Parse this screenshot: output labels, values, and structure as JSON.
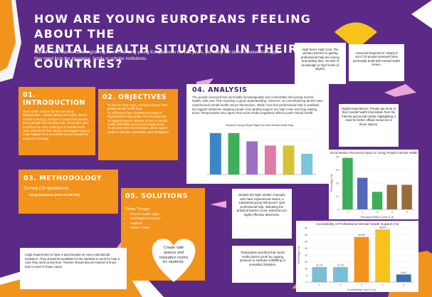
{
  "header": {
    "title_line1": "HOW ARE YOUNG EUROPEANS FEELING ABOUT THE",
    "title_line2": "MENTAL HEALTH SITUATION IN THEIR COUNTRIES?",
    "intro": "Mental health has become a growing concern among young Europeans in the last years, yet many still do not receive the support they need from the insurance, family or scholar institutions."
  },
  "introduction": {
    "heading": "01. INTRODUCTION",
    "text": "Some of the reasons for this are social stigmatization, cultural taboos and myths, limited access to therapy, and lack of awareness prevent young people from seeking help. The project aims to explore the main challenges to mental health care, understand their impact, and suggest ways to make support more accessible and acceptable for everyone in Europe."
  },
  "objectives": {
    "heading": "02. OBJECTIVES",
    "items": [
      "To find out what stops young Europeans from getting mental health help.",
      "To understand how depression/anxiety or stigmatization stop people from seeking help.",
      "To suggest ways to improve access to mental health (affordable prices and waiting times)",
      "To promote open conversations about mental health in schools, universities, and workplaces."
    ]
  },
  "methodology": {
    "heading": "03. METHODOLOGY",
    "survey": "Survey (10 questions)",
    "item": "Young Europeans (teens to late 20s)"
  },
  "analysis": {
    "heading": "04. ANALYSIS",
    "text": "The people surveyed feel personally knowledgeable and comfortable discussing mental health, with over 75% reporting a good understanding. However, an overwhelming 88.9% have experienced mental health issues themselves. While most feel professional help is available, the biggest obstacles stopping people from getting support are high costs and long waiting times. Respondents also agree that social media negatively affects youth mental health."
  },
  "solutions": {
    "heading": "05. SOLUTIONS",
    "label": "Online Therapy :",
    "items": [
      "Mental health apps",
      "Text-based services",
      "Hotlines",
      "Online Chats"
    ]
  },
  "notes": {
    "high_need": "High Need, High Cost: The primary barriers to getting professional help are money and waiting lists, not lack of knowledge or high levels of stigma.",
    "universal": "Universal Experience: Nearly 9 out of 10 people surveyed have personally dealt with mental health issues.",
    "digital": "Digital Dependence: People get most of their mental health information from the internet and social media, highlighting a need for better official resources in those spaces.",
    "despite": "Despite the high number of people who have experienced issues, a substantial group still doesn't seek professional help, indicating the practical barriers (cost, wait time) are highly effective deterrents.",
    "participants": "Participants specified that social media harms youth by causing pressure to replicate unfulfilling or unrealistic lifestyles.",
    "safe_spaces": "Create safe spaces and relaxation rooms for students.",
    "legal": "Legal requirement to have a psychologist on every educational institution. They should be available for the students to seek for help in case they need at any time. Teacher should also be trained to know how to react in those cases."
  },
  "colors": {
    "background": "#5a2a86",
    "orange": "#f2931b",
    "yellow": "#f7c21b",
    "white": "#ffffff"
  },
  "chart_data": [
    {
      "type": "bar",
      "title": "Reasons Young People Might Not Seek Mental Health Help",
      "categories": [
        "",
        "",
        "",
        "",
        "",
        ""
      ],
      "values": [
        10,
        10,
        8,
        7,
        7,
        5
      ],
      "colors": [
        "#3a87c8",
        "#3fae5a",
        "#9b6fc3",
        "#e07aa8",
        "#d6c234",
        "#7cc6dd"
      ],
      "ylim": [
        0,
        11
      ],
      "grid": true
    },
    {
      "type": "bar",
      "title": "Social Media's Perceived Impact on Young People's Mental Health",
      "xlabel": "Perceived Effect Level (1-5)",
      "ylabel": "Percentage (%)",
      "categories": [
        "1",
        "2",
        "3",
        "4",
        "5"
      ],
      "values": [
        44,
        27,
        15,
        21,
        21
      ],
      "colors": [
        "#3fae5a",
        "#5866b8",
        "#3fae5a",
        "#9a6b3a",
        "#9a6b3a"
      ],
      "ylim": [
        0,
        45
      ],
      "grid": true
    },
    {
      "type": "bar",
      "title": "Accessibility of Professional Mental Health Support (%)",
      "xlabel": "Accessibility Level (1-5)",
      "ylabel": "Percentage (%)",
      "categories": [
        "1",
        "2",
        "3",
        "4",
        "5"
      ],
      "values": [
        11.1,
        11.1,
        33.3,
        38.9,
        5.6
      ],
      "data_labels": [
        "11.1%",
        "11.1%",
        "33.3%",
        "38.9%",
        "5.6%"
      ],
      "colors": [
        "#7bbfd6",
        "#7bbfd6",
        "#f2931b",
        "#f7c21b",
        "#3a6fb0"
      ],
      "ylim": [
        0,
        40
      ],
      "yticks": [
        "0",
        "5",
        "10",
        "15",
        "20",
        "25",
        "30",
        "35",
        "40"
      ],
      "grid": true
    }
  ]
}
